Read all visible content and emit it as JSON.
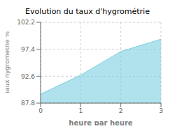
{
  "chart_data": {
    "type": "area",
    "title": "Evolution du taux d'hygrométrie",
    "x_label": "heure par heure",
    "y_label": "Taux hygrométrie %",
    "x": [
      0,
      1,
      2,
      3
    ],
    "values": [
      89.4,
      92.8,
      97.0,
      99.2
    ],
    "color": "#7acfe0",
    "xlim": [
      0,
      3
    ],
    "xticks": [
      0,
      1,
      2,
      3
    ],
    "ylim": [
      87.8,
      102.2
    ],
    "yticks": [
      87.8,
      92.6,
      97.4,
      102.2
    ],
    "grid": true
  }
}
